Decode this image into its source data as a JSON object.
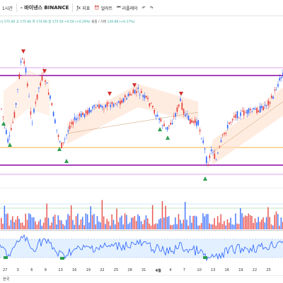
{
  "toolbar": {
    "interval": "1시간",
    "symbol": "- 바이낸스 BINANCE",
    "indicators_label": "지표",
    "alert_label": "얼러트",
    "replay_label": "리플레이",
    "undo_icon": "undo-icon",
    "redo_icon": "redo-icon"
  },
  "ohlc": {
    "text": "시 175.00 고 175.60 저 174.90 종 175.50 +0.50 (+0.29%)",
    "volume_label": "볼륨 / 거래",
    "volume_value": "130.89 (+0.17%)"
  },
  "x_axis": {
    "labels": [
      "27",
      "3",
      "6",
      "9",
      "13",
      "16",
      "19",
      "22",
      "25",
      "28",
      "31",
      "4월",
      "4",
      "7",
      "10",
      "13",
      "16",
      "19",
      "22",
      "25"
    ]
  },
  "footer": {
    "label": "한국"
  },
  "colors": {
    "up": "#26a69a",
    "down": "#ef5350",
    "bull_candle": "#2962ff",
    "bear_candle": "#e53935",
    "purple_line": "#9c27b0",
    "orange_line": "#ff9800",
    "channel_fill": "#ffe0cc",
    "osc_line": "#2962ff",
    "osc_band": "#e3f0ff"
  },
  "markers": {
    "up_arrow": "arrow-up-icon",
    "down_arrow": "arrow-down-icon"
  }
}
